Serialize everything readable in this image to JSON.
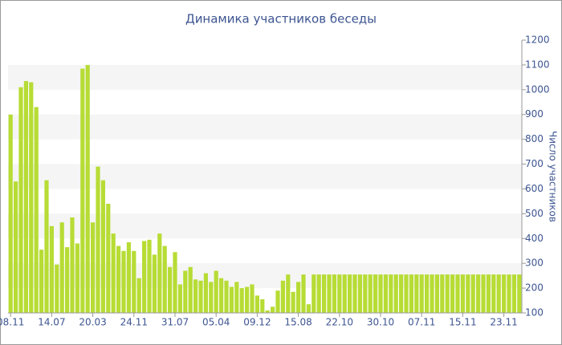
{
  "chart_data": {
    "type": "bar",
    "title": "Динамика участников беседы",
    "y_axis_label": "Число участников",
    "categories": [
      "08.11",
      null,
      null,
      null,
      null,
      null,
      null,
      null,
      "14.07",
      null,
      null,
      null,
      null,
      null,
      null,
      null,
      "20.03",
      null,
      null,
      null,
      null,
      null,
      null,
      null,
      "24.11",
      null,
      null,
      null,
      null,
      null,
      null,
      null,
      "31.07",
      null,
      null,
      null,
      null,
      null,
      null,
      null,
      "05.04",
      null,
      null,
      null,
      null,
      null,
      null,
      null,
      "09.12",
      null,
      null,
      null,
      null,
      null,
      null,
      null,
      "15.08",
      null,
      null,
      null,
      null,
      null,
      null,
      null,
      "22.10",
      null,
      null,
      null,
      null,
      null,
      null,
      null,
      "30.10",
      null,
      null,
      null,
      null,
      null,
      null,
      null,
      "07.11",
      null,
      null,
      null,
      null,
      null,
      null,
      null,
      "15.11",
      null,
      null,
      null,
      null,
      null,
      null,
      null,
      "23.11",
      null,
      null,
      null
    ],
    "values": [
      900,
      630,
      1010,
      1035,
      1030,
      930,
      355,
      635,
      450,
      295,
      465,
      365,
      485,
      380,
      1085,
      1100,
      465,
      690,
      635,
      540,
      420,
      370,
      350,
      385,
      350,
      240,
      390,
      395,
      335,
      420,
      370,
      285,
      345,
      215,
      270,
      285,
      235,
      230,
      260,
      225,
      270,
      240,
      230,
      205,
      225,
      200,
      205,
      215,
      170,
      155,
      110,
      125,
      190,
      230,
      255,
      185,
      225,
      255,
      135,
      255,
      255,
      255,
      255,
      255,
      255,
      255,
      255,
      255,
      255,
      255,
      255,
      255,
      255,
      255,
      255,
      255,
      255,
      255,
      255,
      255,
      255,
      255,
      255,
      255,
      255,
      255,
      255,
      255,
      255,
      255,
      255,
      255,
      255,
      255,
      255,
      255,
      255,
      255,
      255,
      255
    ],
    "color": "#b7dc35",
    "ylim": [
      100,
      1200
    ],
    "yticks": [
      100,
      200,
      300,
      400,
      500,
      600,
      700,
      800,
      900,
      1000,
      1100,
      1200
    ],
    "y_axis_side": "right",
    "alternate_bands": true
  }
}
